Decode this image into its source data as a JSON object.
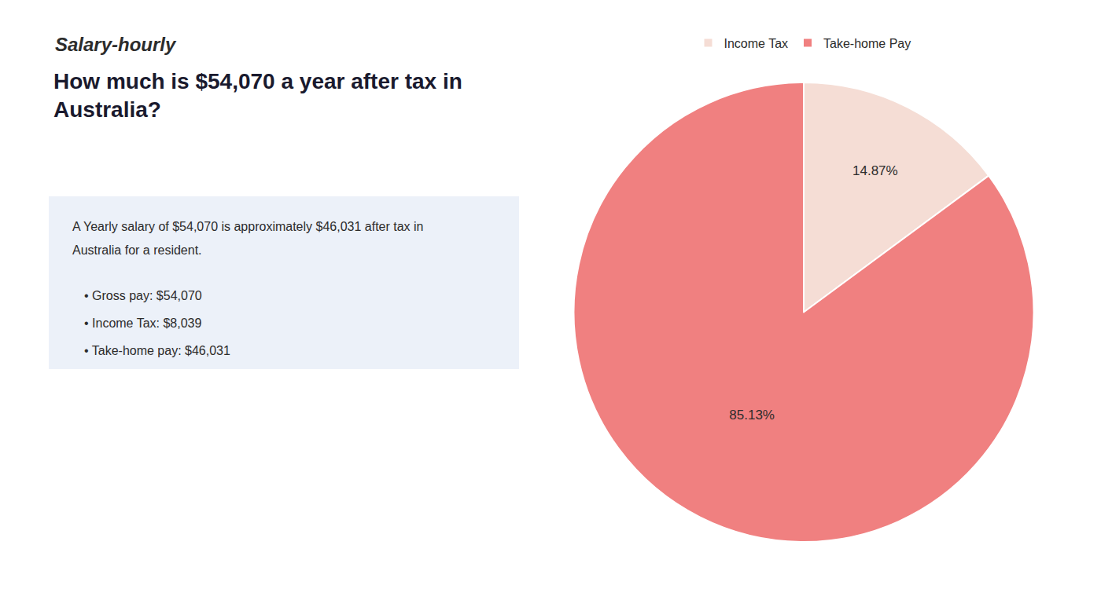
{
  "chart_data": {
    "type": "pie",
    "title": "How much is $54,070 a year after tax in\nAustralia?",
    "annotations": [
      "Salary-hourly",
      "A Yearly salary of $54,070 is approximately $46,031 after tax in",
      "Australia for a resident.",
      "• Gross pay: $54,070",
      "• Income Tax: $8,039",
      "• Take-home pay: $46,031"
    ],
    "categories": [
      "Income Tax",
      "Take-home Pay"
    ],
    "values": [
      14.87,
      85.13
    ],
    "value_labels": [
      "14.87%",
      "85.13%"
    ],
    "colors": [
      "#f5ddd5",
      "#f08080"
    ],
    "data_labels": true,
    "legend": "top"
  }
}
